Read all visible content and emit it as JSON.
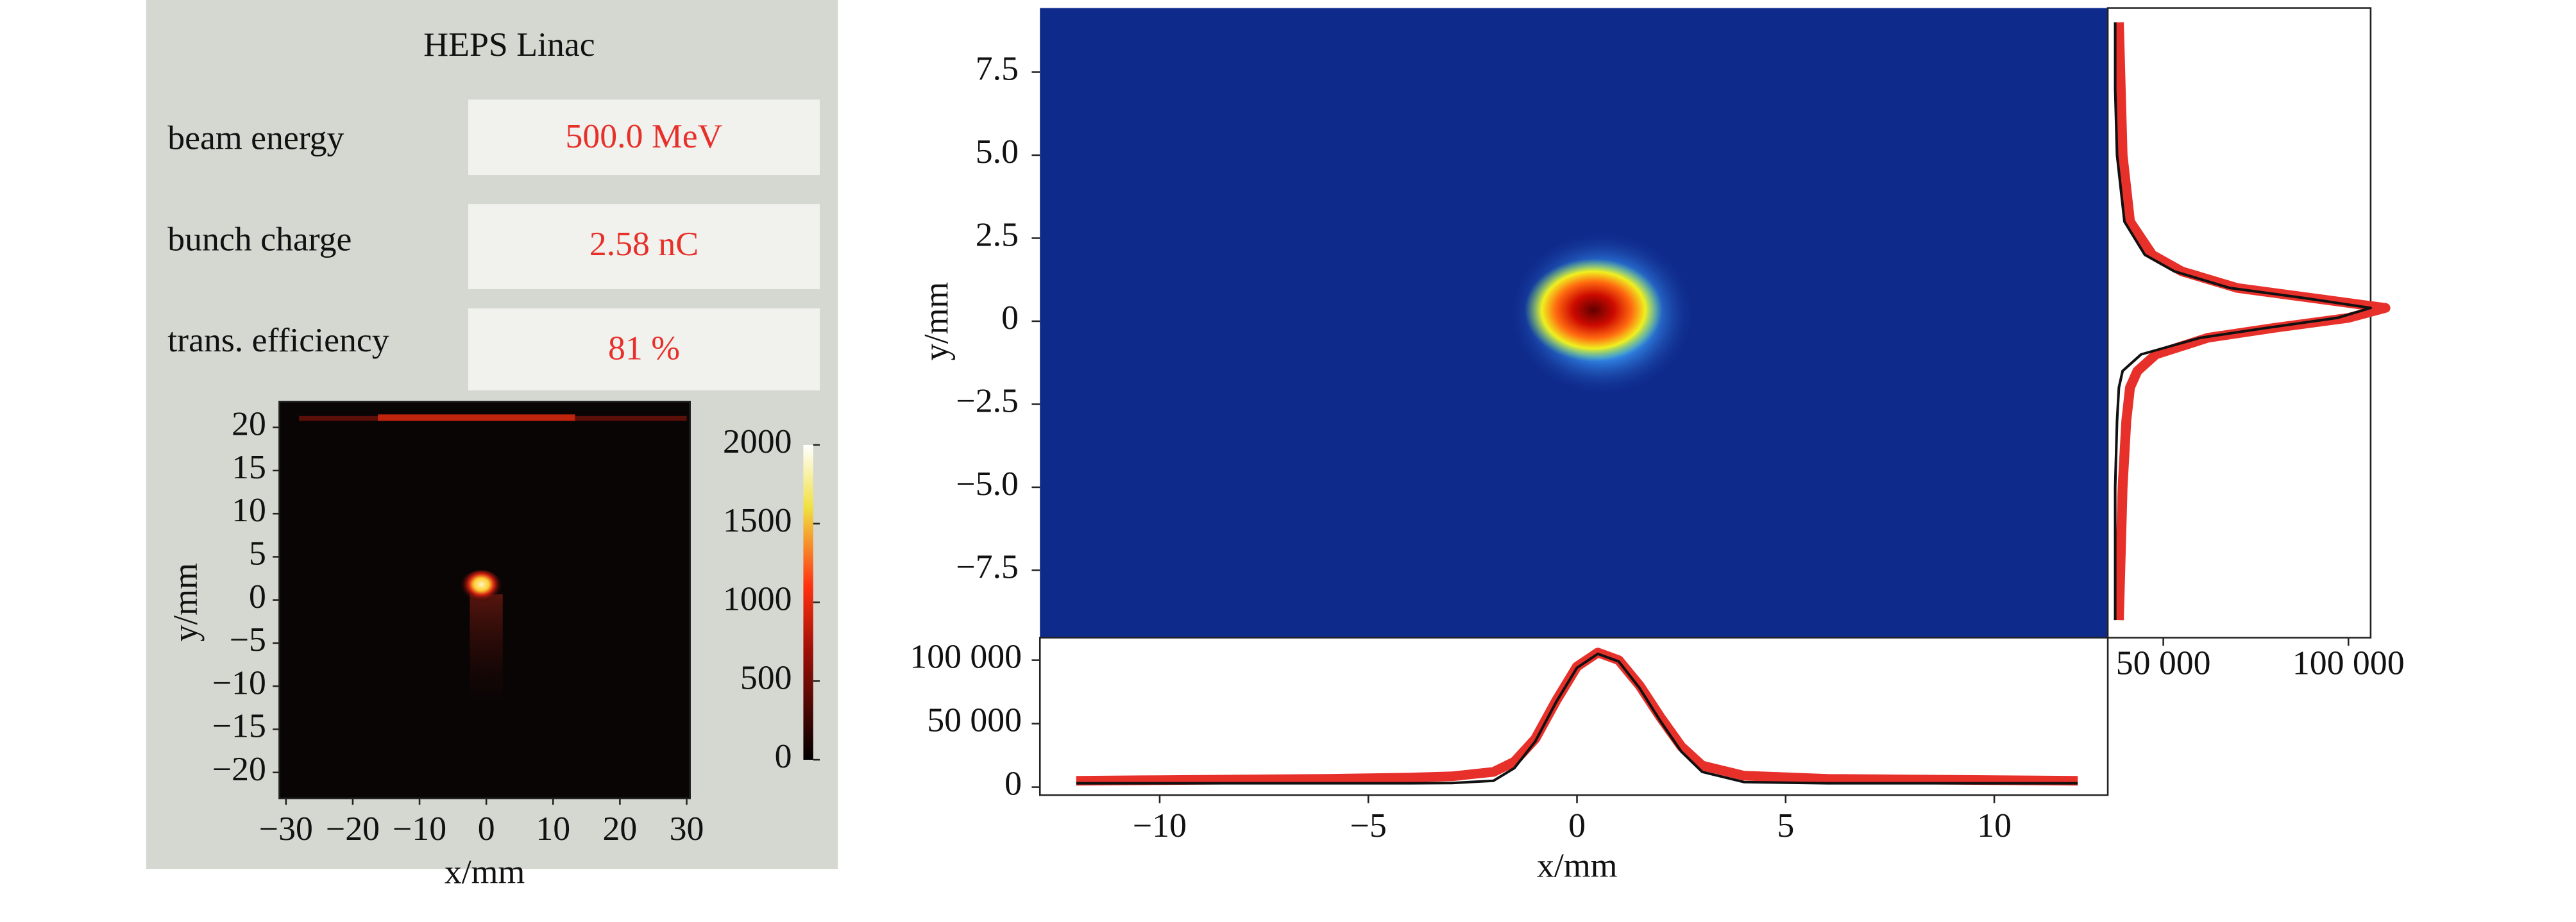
{
  "panel": {
    "title": "HEPS Linac",
    "rows": [
      {
        "label": "beam energy",
        "value": "500.0 MeV"
      },
      {
        "label": "bunch charge",
        "value": "2.58 nC"
      },
      {
        "label": "trans. efficiency",
        "value": "81 %"
      }
    ]
  },
  "camera": {
    "xlabel": "x/mm",
    "ylabel": "y/mm",
    "xlim": [
      -31,
      30.5
    ],
    "ylim": [
      -23,
      23
    ],
    "xticks": [
      {
        "value": -30,
        "label": "−30"
      },
      {
        "value": -20,
        "label": "−20"
      },
      {
        "value": -10,
        "label": "−10"
      },
      0,
      10,
      20,
      30
    ],
    "yticks": [
      {
        "value": -20,
        "label": "−20"
      },
      {
        "value": -15,
        "label": "−15"
      },
      {
        "value": -10,
        "label": "−10"
      },
      {
        "value": -5,
        "label": "−5"
      },
      0,
      5,
      10,
      15,
      20
    ],
    "colorbar": {
      "lim": [
        0,
        2000
      ],
      "ticks": [
        0,
        500,
        1000,
        1500,
        2000
      ]
    }
  },
  "profile_view": {
    "xlabel": "x/mm",
    "ylabel": "y/mm",
    "xlim": [
      -12.87,
      12.72
    ],
    "ylim": [
      -9.53,
      9.43
    ],
    "xticks": [
      {
        "value": -10,
        "label": "−10"
      },
      {
        "value": -5,
        "label": "−5"
      },
      0,
      5,
      10
    ],
    "yticks": [
      {
        "value": -7.5,
        "label": "−7.5"
      },
      {
        "value": -5,
        "label": "−5.0"
      },
      {
        "value": -2.5,
        "label": "−2.5"
      },
      0,
      2.5,
      {
        "value": 5,
        "label": "5.0"
      },
      7.5
    ],
    "x_profile": {
      "ylim": [
        -6300,
        117700
      ],
      "yticks": [
        0,
        {
          "value": 50000,
          "label": "50 000"
        },
        {
          "value": 100000,
          "label": "100 000"
        }
      ],
      "x": [
        -12,
        -10,
        -8,
        -6,
        -4,
        -3,
        -2,
        -1.5,
        -1,
        -0.5,
        0,
        0.5,
        1,
        1.5,
        2,
        2.5,
        3,
        4,
        6,
        8,
        10,
        12
      ],
      "series": [
        {
          "color": "#e8302a",
          "values": [
            5000,
            5500,
            6000,
            6500,
            7500,
            8500,
            12000,
            20000,
            38000,
            68000,
            95000,
            106000,
            100000,
            80000,
            55000,
            32000,
            17000,
            9000,
            6500,
            6000,
            5500,
            5000
          ]
        },
        {
          "color": "#111111",
          "values": [
            3000,
            3000,
            3000,
            3000,
            3000,
            3200,
            5000,
            15000,
            36000,
            67000,
            94000,
            105000,
            99000,
            78000,
            52000,
            28000,
            12000,
            4000,
            3000,
            3000,
            3000,
            3000
          ]
        }
      ]
    },
    "y_profile": {
      "xlim": [
        35000,
        106000
      ],
      "xticks": [
        {
          "value": 50000,
          "label": "50 000"
        },
        {
          "value": 100000,
          "label": "100 000"
        }
      ],
      "y": [
        9,
        7,
        5,
        3,
        2,
        1.5,
        1,
        0.7,
        0.4,
        0.1,
        -0.2,
        -0.5,
        -1,
        -1.5,
        -2,
        -3,
        -5,
        -7,
        -9
      ],
      "series": [
        {
          "color": "#e8302a",
          "values": [
            38000,
            38500,
            39000,
            41000,
            47000,
            55000,
            70000,
            90000,
            110000,
            100000,
            80000,
            62000,
            48000,
            43000,
            41000,
            40000,
            39000,
            38500,
            38000
          ]
        },
        {
          "color": "#111111",
          "values": [
            37000,
            37000,
            37500,
            39500,
            45000,
            53000,
            68000,
            88000,
            106000,
            97000,
            78000,
            60000,
            44000,
            39000,
            38000,
            37500,
            37000,
            37000,
            37000
          ]
        }
      ]
    }
  }
}
